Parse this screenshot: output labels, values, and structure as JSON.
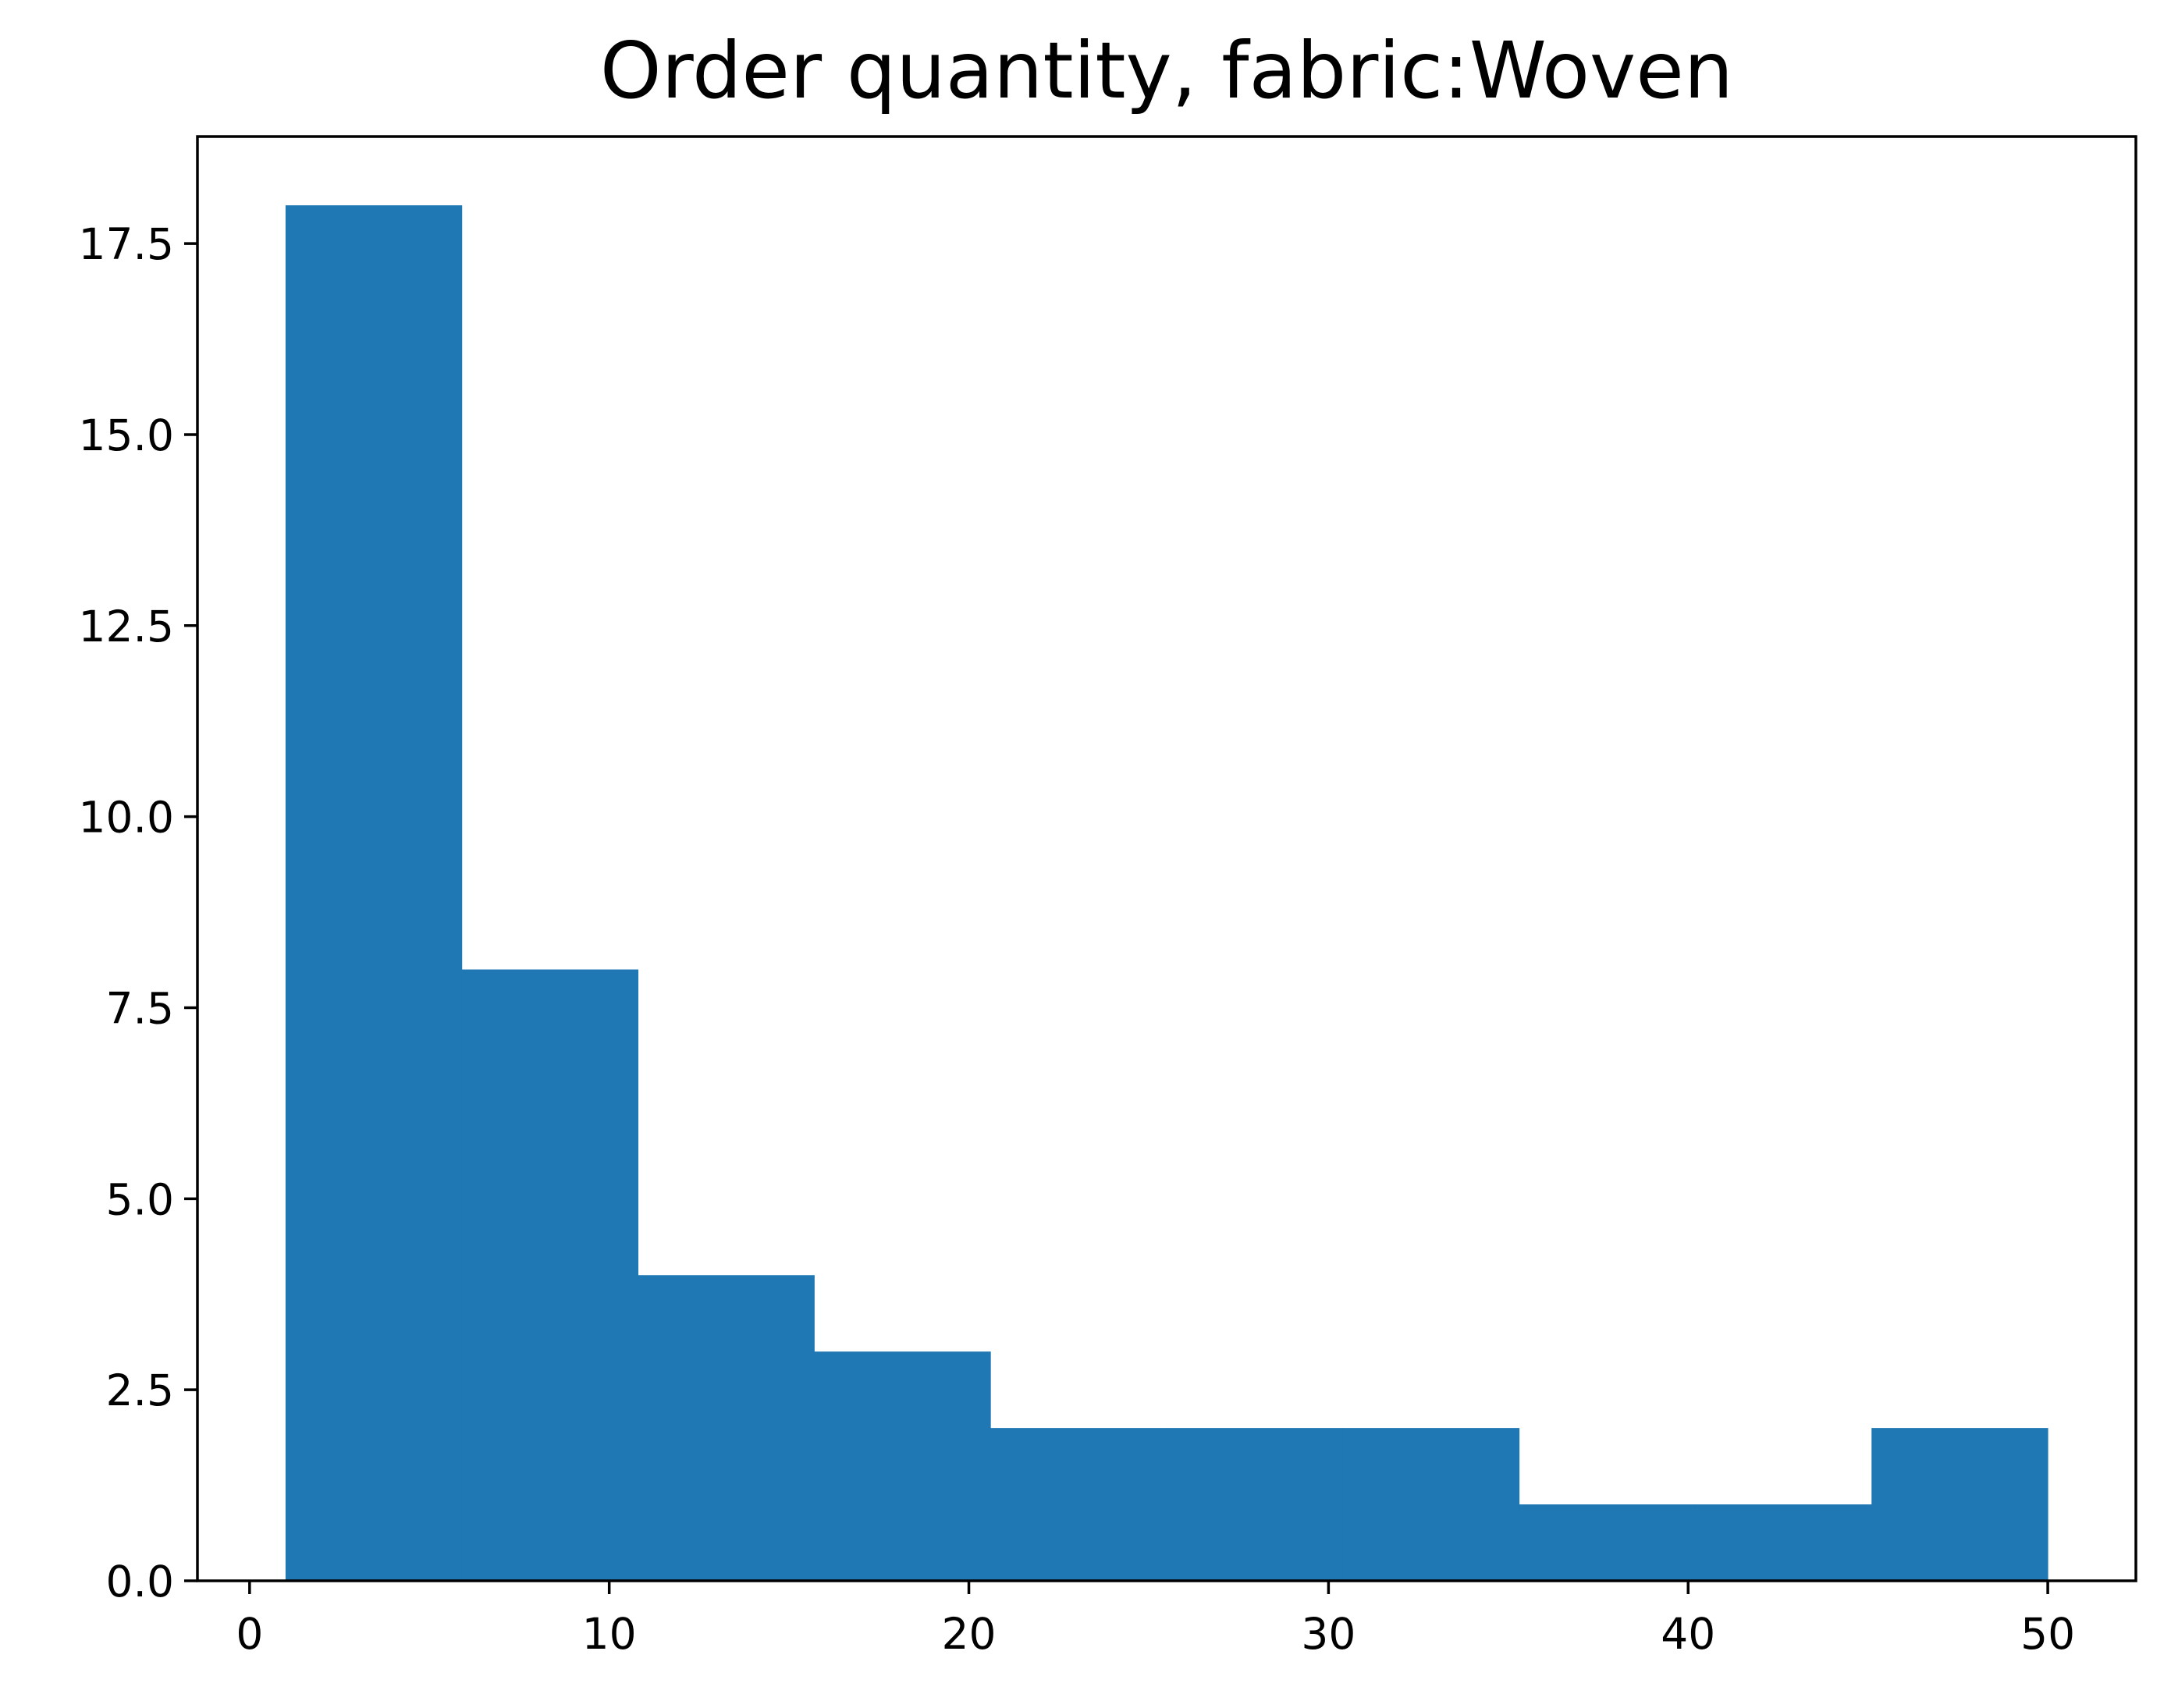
{
  "chart_data": {
    "type": "bar",
    "subtype": "histogram",
    "title": "Order quantity, fabric:Woven",
    "xlabel": "",
    "ylabel": "",
    "bin_edges": [
      1,
      5.9,
      10.8,
      15.7,
      20.6,
      25.5,
      30.4,
      35.3,
      40.2,
      45.1,
      50
    ],
    "values": [
      18,
      8,
      4,
      3,
      2,
      2,
      2,
      1,
      1,
      2
    ],
    "xlim": [
      -1.45,
      52.45
    ],
    "ylim": [
      0,
      18.9
    ],
    "xticks": [
      0,
      10,
      20,
      30,
      40,
      50
    ],
    "xtick_labels": [
      "0",
      "10",
      "20",
      "30",
      "40",
      "50"
    ],
    "yticks": [
      0,
      2.5,
      5,
      7.5,
      10,
      12.5,
      15,
      17.5
    ],
    "ytick_labels": [
      "0.0",
      "2.5",
      "5.0",
      "7.5",
      "10.0",
      "12.5",
      "15.0",
      "17.5"
    ],
    "bar_color": "#1f77b4",
    "grid": false,
    "legend": "none"
  }
}
